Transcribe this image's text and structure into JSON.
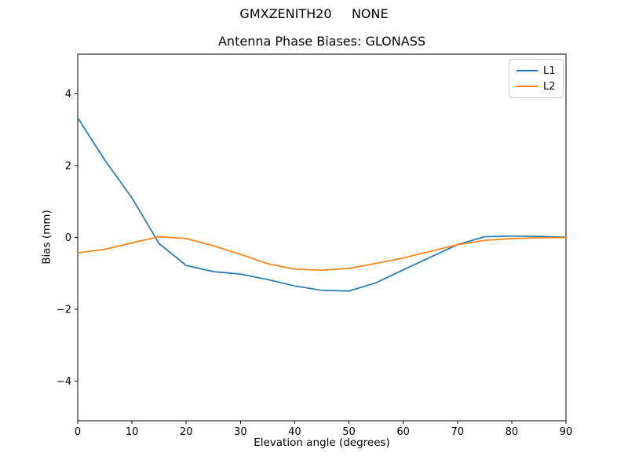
{
  "figure": {
    "suptitle": "GMXZENITH20     NONE",
    "axes_title": "Antenna Phase Biases: GLONASS"
  },
  "chart_data": {
    "type": "line",
    "title": "Antenna Phase Biases: GLONASS",
    "suptitle": "GMXZENITH20     NONE",
    "xlabel": "Elevation angle (degrees)",
    "ylabel": "Bias (mm)",
    "xlim": [
      0,
      90
    ],
    "ylim": [
      -5.1,
      5.1
    ],
    "xticks": [
      0,
      10,
      20,
      30,
      40,
      50,
      60,
      70,
      80,
      90
    ],
    "yticks": [
      -4,
      -2,
      0,
      2,
      4
    ],
    "grid": false,
    "legend_position": "upper right",
    "x": [
      0,
      5,
      10,
      15,
      20,
      25,
      30,
      35,
      40,
      45,
      50,
      55,
      60,
      65,
      70,
      75,
      80,
      85,
      90
    ],
    "series": [
      {
        "name": "L1",
        "color": "#1f77b4",
        "values": [
          3.33,
          2.15,
          1.1,
          -0.17,
          -0.78,
          -0.95,
          -1.02,
          -1.17,
          -1.35,
          -1.47,
          -1.49,
          -1.26,
          -0.9,
          -0.55,
          -0.2,
          0.02,
          0.04,
          0.03,
          0.01
        ]
      },
      {
        "name": "L2",
        "color": "#ff7f0e",
        "values": [
          -0.43,
          -0.33,
          -0.15,
          0.02,
          -0.03,
          -0.23,
          -0.47,
          -0.73,
          -0.88,
          -0.91,
          -0.86,
          -0.72,
          -0.57,
          -0.39,
          -0.2,
          -0.08,
          -0.03,
          -0.01,
          0.0
        ]
      }
    ]
  }
}
